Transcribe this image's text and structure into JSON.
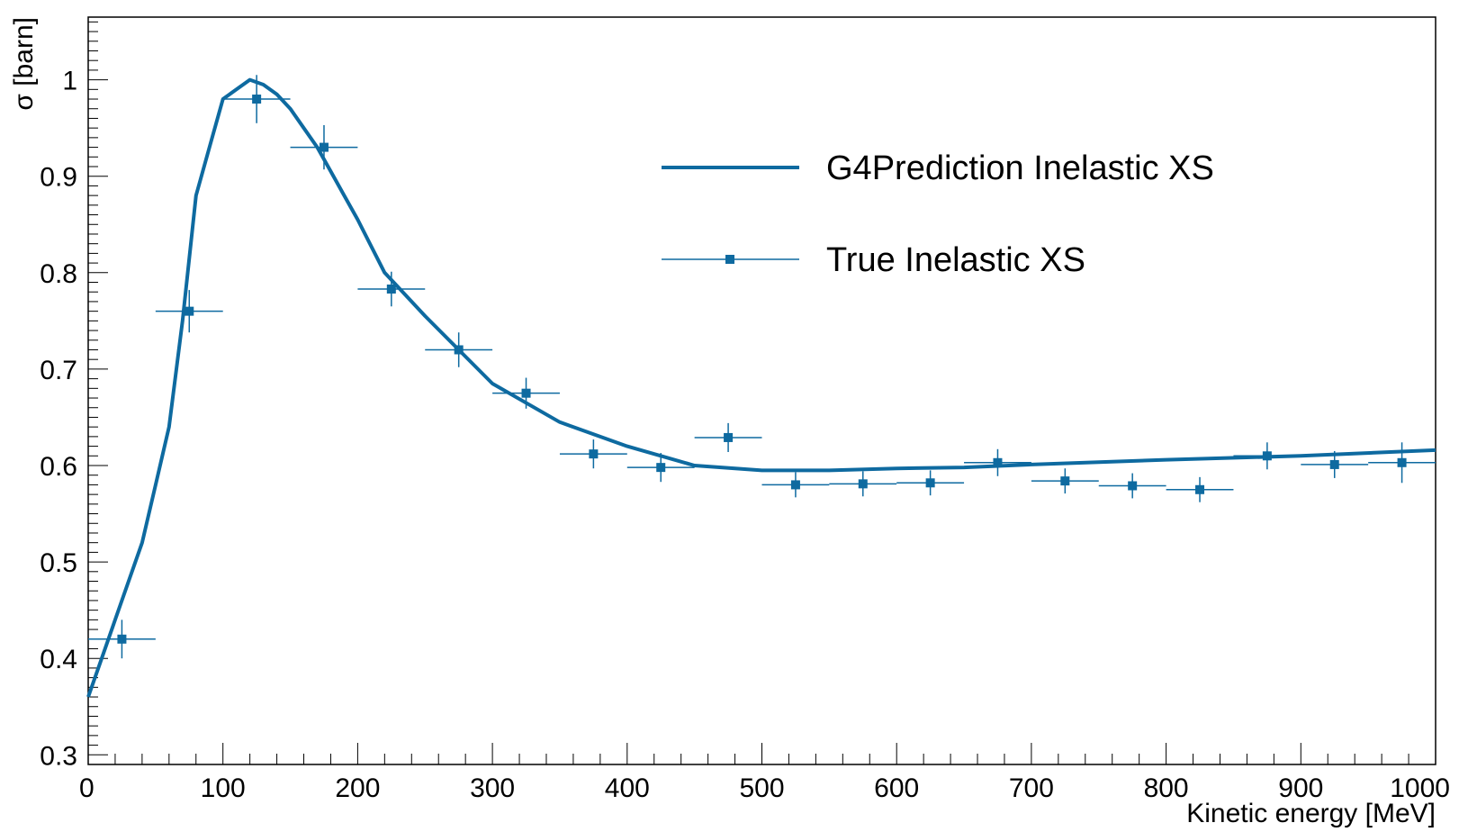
{
  "chart_data": {
    "type": "line",
    "xlabel": "Kinetic energy [MeV]",
    "ylabel": "σ [barn]",
    "xlim": [
      0,
      1000
    ],
    "ylim": [
      0.29,
      1.065
    ],
    "x_ticks": [
      "0",
      "100",
      "200",
      "300",
      "400",
      "500",
      "600",
      "700",
      "800",
      "900",
      "1000"
    ],
    "y_ticks": [
      "0.3",
      "0.4",
      "0.5",
      "0.6",
      "0.7",
      "0.8",
      "0.9",
      "1"
    ],
    "grid": false,
    "legend_position": "top-right",
    "colors": {
      "series": "#0e6aa0"
    },
    "series": [
      {
        "name": "G4Prediction Inelastic XS",
        "kind": "line",
        "x": [
          0,
          10,
          20,
          30,
          40,
          50,
          60,
          70,
          80,
          90,
          100,
          110,
          120,
          130,
          140,
          150,
          160,
          170,
          180,
          190,
          200,
          220,
          250,
          275,
          300,
          350,
          400,
          450,
          500,
          550,
          600,
          650,
          700,
          800,
          900,
          1000
        ],
        "y": [
          0.36,
          0.4,
          0.44,
          0.48,
          0.52,
          0.58,
          0.64,
          0.75,
          0.88,
          0.93,
          0.98,
          0.99,
          1.0,
          0.995,
          0.985,
          0.97,
          0.95,
          0.93,
          0.905,
          0.88,
          0.855,
          0.8,
          0.755,
          0.72,
          0.685,
          0.645,
          0.62,
          0.6,
          0.595,
          0.595,
          0.597,
          0.598,
          0.601,
          0.606,
          0.61,
          0.616
        ]
      },
      {
        "name": "True Inelastic XS",
        "kind": "points",
        "x": [
          25,
          75,
          125,
          175,
          225,
          275,
          325,
          375,
          425,
          475,
          525,
          575,
          625,
          675,
          725,
          775,
          825,
          875,
          925,
          975
        ],
        "y": [
          0.42,
          0.76,
          0.98,
          0.93,
          0.783,
          0.72,
          0.675,
          0.612,
          0.598,
          0.629,
          0.58,
          0.581,
          0.582,
          0.603,
          0.584,
          0.579,
          0.575,
          0.61,
          0.601,
          0.603
        ],
        "yerr": [
          0.02,
          0.022,
          0.025,
          0.023,
          0.018,
          0.018,
          0.016,
          0.015,
          0.015,
          0.015,
          0.013,
          0.013,
          0.013,
          0.014,
          0.013,
          0.013,
          0.013,
          0.014,
          0.014,
          0.021
        ],
        "xerr": [
          25,
          25,
          25,
          25,
          25,
          25,
          25,
          25,
          25,
          25,
          25,
          25,
          25,
          25,
          25,
          25,
          25,
          25,
          25,
          25
        ]
      }
    ]
  }
}
